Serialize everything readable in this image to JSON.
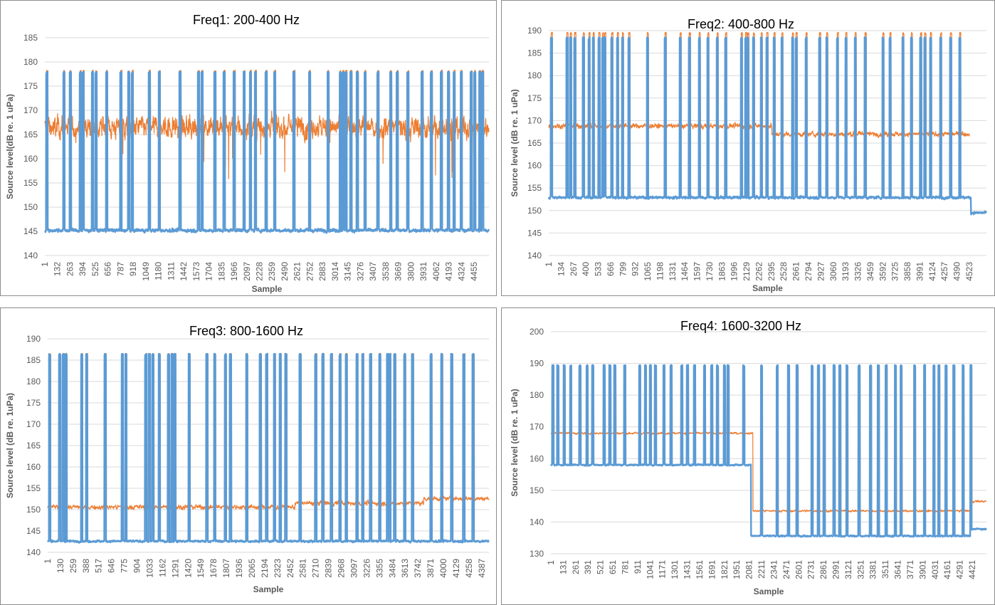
{
  "chart_data": [
    {
      "type": "line",
      "title": "Freq1: 200-400 Hz",
      "xlabel": "Sample",
      "ylabel": "Source level(dB re. 1 uPa)",
      "ylim": [
        140,
        185
      ],
      "yticks": [
        "140",
        "145",
        "150",
        "155",
        "160",
        "165",
        "170",
        "175",
        "180",
        "185"
      ],
      "x_range": [
        1,
        4610
      ],
      "x_tick_labels": [
        "1",
        "132",
        "263",
        "394",
        "525",
        "656",
        "787",
        "918",
        "1049",
        "1180",
        "1311",
        "1442",
        "1573",
        "1704",
        "1835",
        "1966",
        "2097",
        "2228",
        "2359",
        "2490",
        "2621",
        "2752",
        "2883",
        "3014",
        "3145",
        "3276",
        "3407",
        "3538",
        "3669",
        "3800",
        "3931",
        "4062",
        "4193",
        "4324",
        "4455"
      ],
      "grid": true,
      "spike_samples": [
        16,
        193,
        260,
        363,
        393,
        489,
        526,
        637,
        784,
        866,
        903,
        1080,
        1183,
        1398,
        1590,
        1627,
        1760,
        1856,
        1960,
        2063,
        2129,
        2181,
        2292,
        2381,
        2580,
        2743,
        2935,
        3061,
        3090,
        3120,
        3172,
        3238,
        3319,
        3452,
        3585,
        3652,
        3762,
        3910,
        4006,
        4110,
        4184,
        4243,
        4317,
        4420,
        4457,
        4509,
        4538
      ],
      "series": [
        {
          "color": "#ED7D31",
          "segments": [
            {
              "from": 1,
              "to": 4610,
              "level": 166.5
            }
          ],
          "noise_db": 3.5,
          "spike_peak": 178.3
        },
        {
          "color": "#5B9BD5",
          "segments": [
            {
              "from": 1,
              "to": 4610,
              "level": 145.2
            }
          ],
          "noise_db": 0.5,
          "spike_peak": 178
        }
      ]
    },
    {
      "type": "line",
      "title": "Freq2: 400-800 Hz",
      "xlabel": "Sample",
      "ylabel": "Source level (dB re. 1 uPa)",
      "ylim": [
        140,
        190
      ],
      "yticks": [
        "140",
        "145",
        "150",
        "155",
        "160",
        "165",
        "170",
        "175",
        "180",
        "185",
        "190"
      ],
      "x_range": [
        1,
        4707
      ],
      "x_tick_labels": [
        "1",
        "134",
        "267",
        "400",
        "533",
        "666",
        "799",
        "932",
        "1065",
        "1198",
        "1331",
        "1464",
        "1597",
        "1730",
        "1863",
        "1996",
        "2129",
        "2262",
        "2395",
        "2528",
        "2661",
        "2794",
        "2927",
        "3060",
        "3193",
        "3326",
        "3459",
        "3592",
        "3725",
        "3858",
        "3991",
        "4124",
        "4257",
        "4390",
        "4523"
      ],
      "grid": true,
      "spike_samples": [
        24,
        192,
        230,
        276,
        368,
        429,
        475,
        536,
        575,
        598,
        674,
        735,
        789,
        858,
        1057,
        1248,
        1409,
        1508,
        1615,
        1707,
        1807,
        1898,
        2067,
        2113,
        2136,
        2197,
        2281,
        2342,
        2419,
        2503,
        2617,
        2656,
        2763,
        2908,
        2985,
        3099,
        3191,
        3291,
        3398,
        3589,
        3665,
        3803,
        3895,
        3994,
        4040,
        4101,
        4209,
        4316,
        4415
      ],
      "series": [
        {
          "color": "#ED7D31",
          "segments": [
            {
              "from": 1,
              "to": 2400,
              "level": 168.8
            },
            {
              "from": 2401,
              "to": 4525,
              "level": 167.0
            }
          ],
          "noise_db": 0.8,
          "spike_peak": 189.6
        },
        {
          "color": "#5B9BD5",
          "segments": [
            {
              "from": 1,
              "to": 4540,
              "level": 152.9
            },
            {
              "from": 4541,
              "to": 4707,
              "level": 149.5
            }
          ],
          "noise_db": 0.4,
          "spike_peak": 188.5
        }
      ]
    },
    {
      "type": "line",
      "title": "Freq3: 800-1600 Hz",
      "xlabel": "Sample",
      "ylabel": "Source level (dB re. 1uPa)",
      "ylim": [
        140,
        190
      ],
      "yticks": [
        "140",
        "145",
        "150",
        "155",
        "160",
        "165",
        "170",
        "175",
        "180",
        "185",
        "190"
      ],
      "x_range": [
        1,
        4460
      ],
      "x_tick_labels": [
        "1",
        "130",
        "259",
        "388",
        "517",
        "646",
        "775",
        "904",
        "1033",
        "1162",
        "1291",
        "1420",
        "1549",
        "1678",
        "1807",
        "1936",
        "2065",
        "2194",
        "2323",
        "2452",
        "2581",
        "2710",
        "2839",
        "2968",
        "3097",
        "3226",
        "3355",
        "3484",
        "3613",
        "3742",
        "3871",
        "4000",
        "4129",
        "4258",
        "4387"
      ],
      "grid": true,
      "spike_samples": [
        15,
        116,
        152,
        181,
        339,
        389,
        576,
        749,
        785,
        986,
        1022,
        1058,
        1123,
        1216,
        1252,
        1281,
        1425,
        1604,
        1683,
        1791,
        1842,
        2007,
        2144,
        2208,
        2287,
        2345,
        2402,
        2546,
        2704,
        2776,
        2862,
        2949,
        3013,
        3121,
        3179,
        3258,
        3351,
        3430,
        3452,
        3502,
        3603,
        3682,
        3869,
        3977,
        4078,
        4200,
        4294
      ],
      "series": [
        {
          "color": "#ED7D31",
          "segments": [
            {
              "from": 1,
              "to": 2500,
              "level": 150.6
            },
            {
              "from": 2501,
              "to": 3800,
              "level": 151.5
            },
            {
              "from": 3801,
              "to": 4460,
              "level": 152.6
            }
          ],
          "noise_db": 0.8,
          "spike_peak": 186.6
        },
        {
          "color": "#5B9BD5",
          "segments": [
            {
              "from": 1,
              "to": 4460,
              "level": 142.6
            }
          ],
          "noise_db": 0.35,
          "spike_peak": 186.5
        }
      ]
    },
    {
      "type": "line",
      "title": "Freq4: 1600-3200 Hz",
      "xlabel": "Sample",
      "ylabel": "Source level (dB re. 1 uPa)",
      "ylim": [
        130,
        200
      ],
      "yticks": [
        "130",
        "140",
        "150",
        "160",
        "170",
        "180",
        "190",
        "200"
      ],
      "x_range": [
        1,
        4570
      ],
      "x_tick_labels": [
        "1",
        "131",
        "261",
        "391",
        "521",
        "651",
        "781",
        "911",
        "1041",
        "1171",
        "1301",
        "1431",
        "1561",
        "1691",
        "1821",
        "1951",
        "2081",
        "2211",
        "2341",
        "2471",
        "2601",
        "2731",
        "2861",
        "2991",
        "3121",
        "3251",
        "3381",
        "3511",
        "3641",
        "3771",
        "3901",
        "4031",
        "4161",
        "4291",
        "4421"
      ],
      "grid": true,
      "spike_samples": [
        16,
        68,
        135,
        203,
        300,
        375,
        434,
        554,
        614,
        666,
        770,
        927,
        987,
        1039,
        1092,
        1181,
        1256,
        1368,
        1428,
        1502,
        1607,
        1682,
        1742,
        1816,
        1854,
        2018,
        2205,
        2369,
        2488,
        2578,
        2735,
        2802,
        2862,
        2966,
        3026,
        3101,
        3228,
        3348,
        3430,
        3512,
        3609,
        3669,
        3811,
        3915,
        4013,
        4065,
        4140,
        4222,
        4319,
        4401
      ],
      "series": [
        {
          "color": "#ED7D31",
          "segments": [
            {
              "from": 1,
              "to": 2120,
              "level": 168.0
            },
            {
              "from": 2121,
              "to": 4400,
              "level": 143.5
            },
            {
              "from": 4401,
              "to": 4570,
              "level": 146.5
            }
          ],
          "noise_db": 0.5,
          "spike_peak": 189.2
        },
        {
          "color": "#5B9BD5",
          "segments": [
            {
              "from": 1,
              "to": 2100,
              "level": 158.0
            },
            {
              "from": 2101,
              "to": 4400,
              "level": 135.6
            },
            {
              "from": 4401,
              "to": 4570,
              "level": 137.8
            }
          ],
          "noise_db": 0.35,
          "spike_peak": 189.5
        }
      ]
    }
  ]
}
